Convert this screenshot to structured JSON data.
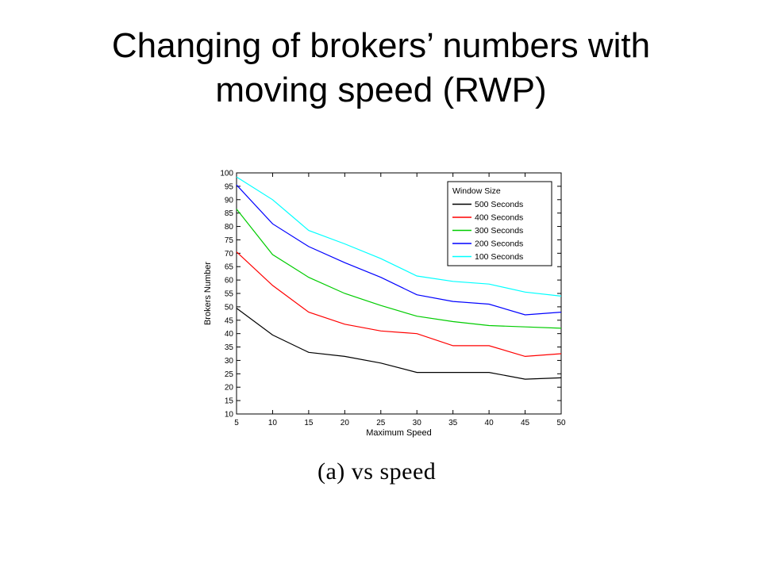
{
  "slide": {
    "title_line1": "Changing of brokers’ numbers with",
    "title_line2": "moving speed (RWP)",
    "caption_label": "(a)",
    "caption_text": "vs speed"
  },
  "chart_data": {
    "type": "line",
    "xlabel": "Maximum Speed",
    "ylabel": "Brokers Number",
    "xlim": [
      5,
      50
    ],
    "ylim": [
      10,
      100
    ],
    "x": [
      5,
      10,
      15,
      20,
      25,
      30,
      35,
      40,
      45,
      50
    ],
    "x_ticks": [
      5,
      10,
      15,
      20,
      25,
      30,
      35,
      40,
      45,
      50
    ],
    "y_ticks": [
      10,
      15,
      20,
      25,
      30,
      35,
      40,
      45,
      50,
      55,
      60,
      65,
      70,
      75,
      80,
      85,
      90,
      95,
      100
    ],
    "grid": false,
    "legend": {
      "title": "Window Size",
      "placement": "top-right"
    },
    "series": [
      {
        "name": "500 Seconds",
        "color": "#000000",
        "values": [
          49.5,
          39.5,
          33,
          31.5,
          29,
          25.5,
          25.5,
          25.5,
          23,
          23.5
        ]
      },
      {
        "name": "400 Seconds",
        "color": "#ff0000",
        "values": [
          70.5,
          58,
          48,
          43.5,
          41,
          40,
          35.5,
          35.5,
          31.5,
          32.5
        ]
      },
      {
        "name": "300 Seconds",
        "color": "#00cc00",
        "values": [
          86.5,
          69.5,
          61,
          55,
          50.5,
          46.5,
          44.5,
          43,
          42.5,
          42
        ]
      },
      {
        "name": "200 Seconds",
        "color": "#0000ff",
        "values": [
          95.5,
          81,
          72.5,
          66.5,
          61,
          54.5,
          52,
          51,
          47,
          48
        ]
      },
      {
        "name": "100 Seconds",
        "color": "#00ffff",
        "values": [
          98.5,
          90,
          78.5,
          73.5,
          68,
          61.5,
          59.5,
          58.5,
          55.5,
          54
        ]
      }
    ]
  }
}
